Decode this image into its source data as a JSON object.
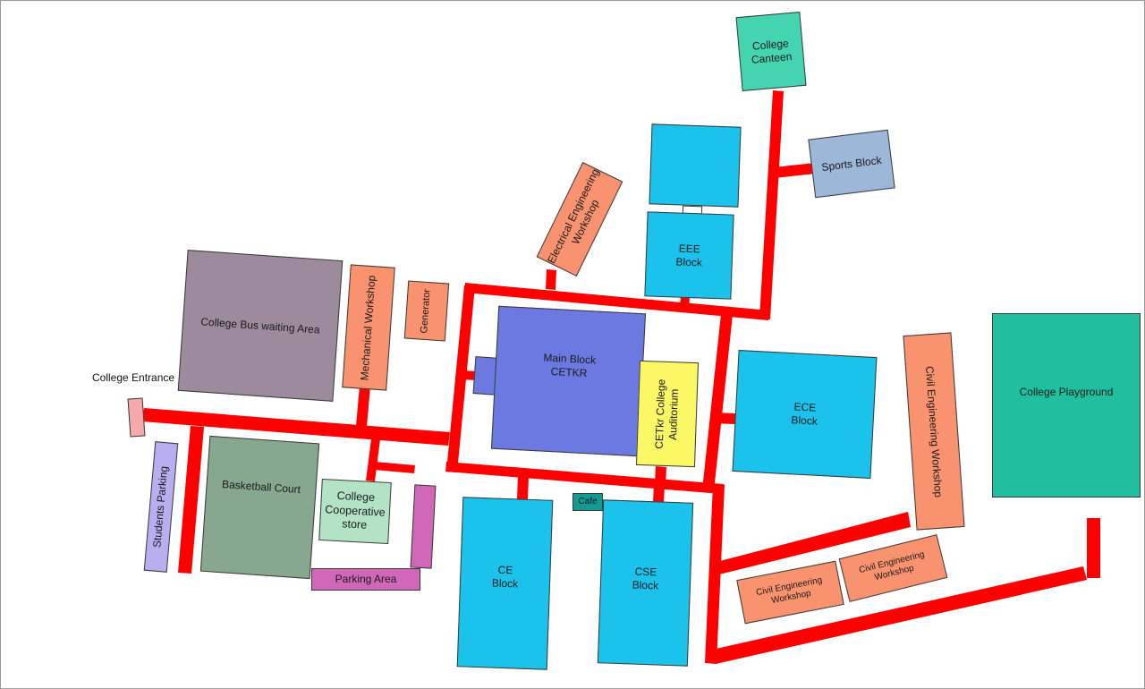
{
  "map": {
    "colors": {
      "road": "#ff0000",
      "main_block": "#6b79e0",
      "academic_block": "#1bc2ec",
      "workshop": "#f9936f",
      "canteen": "#45d4b0",
      "sports_block": "#9db7d8",
      "bus_area": "#9c8b9c",
      "basketball_court": "#87a78f",
      "coop_store": "#b3e2c4",
      "parking": "#d067b8",
      "students_parking": "#b9aef0",
      "auditorium": "#fbf765",
      "playground": "#1fbf9f",
      "cafe": "#129b92",
      "entrance": "#f6a9a9"
    },
    "labels": {
      "college_entrance": "College Entrance",
      "college_bus_waiting_area": "College Bus waiting Area",
      "mechanical_workshop": "Mechanical Workshop",
      "generator": "Generator",
      "electrical_engineering_workshop": "Electrical Engineering\nWorkshop",
      "eee_block": "EEE\nBlock",
      "college_canteen": "College\nCanteen",
      "sports_block": "Sports Block",
      "main_block": "Main Block\nCETKR",
      "auditorium": "CETkr College\nAuditorium",
      "ece_block": "ECE\nBlock",
      "civil_engineering_workshop_vertical": "Civil Engineering Workshop",
      "college_playground": "College Playground",
      "students_parking": "Students Parking",
      "basketball_court": "Basketball Court",
      "college_cooperative_store": "College\nCooperative\nstore",
      "parking_area": "Parking Area",
      "ce_block": "CE\nBlock",
      "cafe": "Cafe",
      "cse_block": "CSE\nBlock",
      "civil_engineering_workshop_1": "Civil Engineering\nWorkshop",
      "civil_engineering_workshop_2": "Civil Engineering\nWorkshop"
    }
  }
}
